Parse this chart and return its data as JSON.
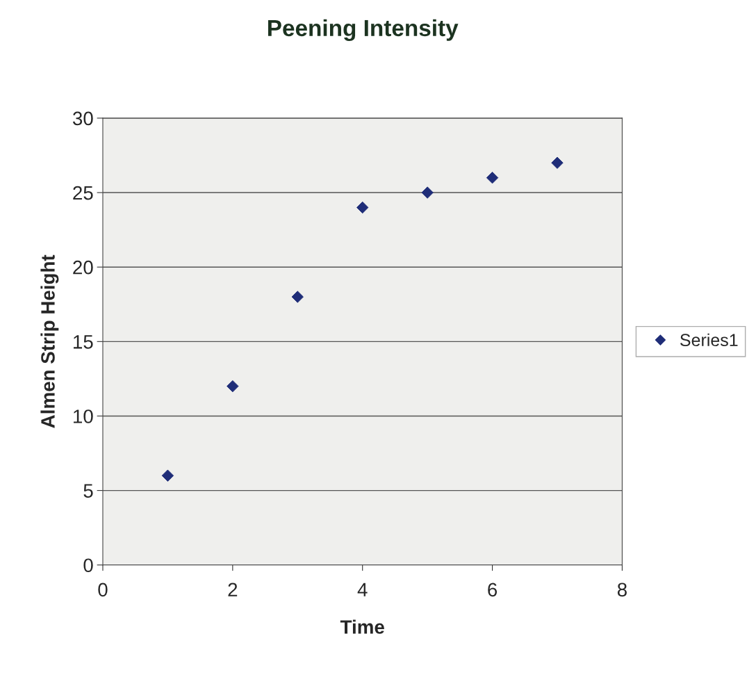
{
  "chart_data": {
    "type": "scatter",
    "title": "Peening Intensity",
    "xlabel": "Time",
    "ylabel": "Almen Strip Height",
    "x": [
      1,
      2,
      3,
      4,
      5,
      6,
      7
    ],
    "series": [
      {
        "name": "Series1",
        "color": "#1f2d78",
        "values": [
          6,
          12,
          18,
          24,
          25,
          26,
          27
        ]
      }
    ],
    "xlim": [
      0,
      8
    ],
    "xticks": [
      0,
      2,
      4,
      6,
      8
    ],
    "ylim": [
      0,
      30
    ],
    "yticks": [
      0,
      5,
      10,
      15,
      20,
      25,
      30
    ],
    "grid": "y",
    "legend": "right",
    "marker": "diamond"
  }
}
